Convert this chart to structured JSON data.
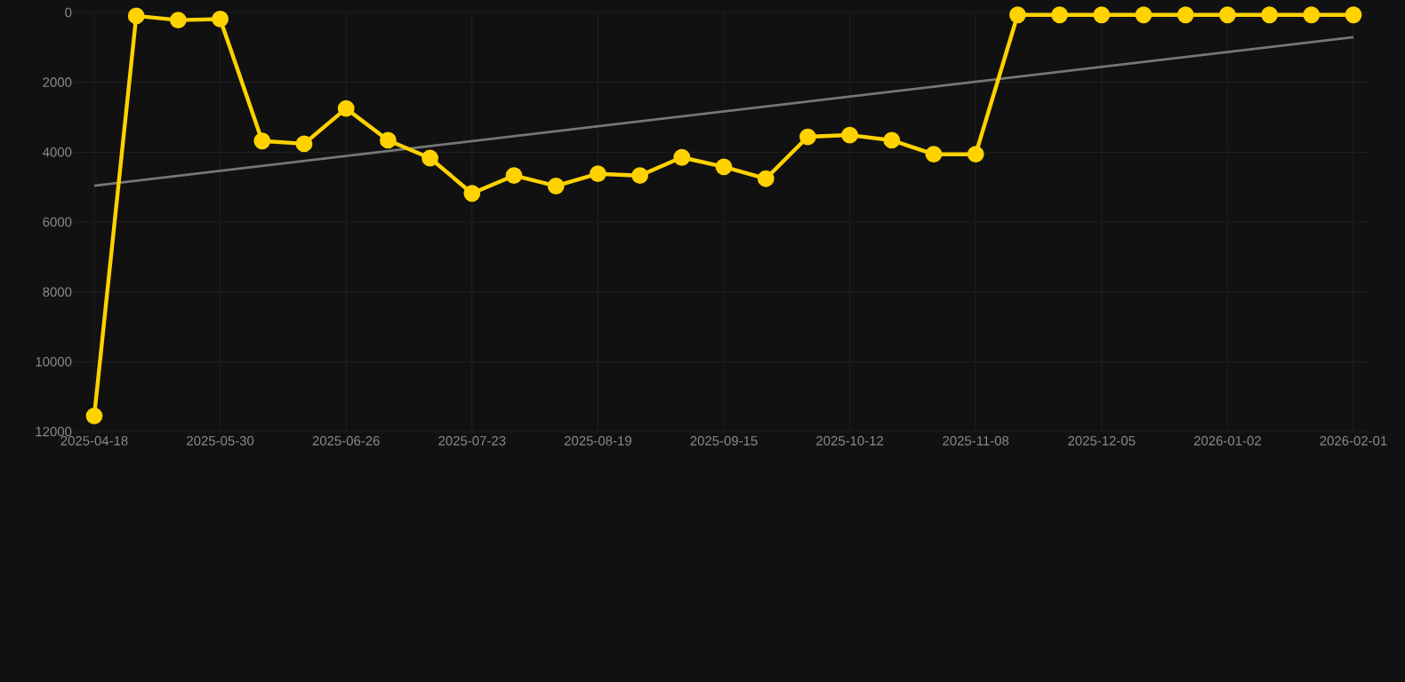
{
  "chart_data": {
    "type": "line",
    "categories": [
      "2025-04-18",
      null,
      null,
      "2025-05-30",
      null,
      null,
      "2025-06-26",
      null,
      null,
      "2025-07-23",
      null,
      null,
      "2025-08-19",
      null,
      null,
      "2025-09-15",
      null,
      null,
      "2025-10-12",
      null,
      null,
      "2025-11-08",
      null,
      null,
      "2025-12-05",
      null,
      null,
      "2026-01-02",
      null,
      null,
      "2026-02-01"
    ],
    "series": [
      {
        "color": "#ffd200",
        "marker": "circle",
        "values": [
          11550,
          100,
          220,
          190,
          3680,
          3760,
          2750,
          3660,
          4170,
          5180,
          4670,
          4970,
          4620,
          4670,
          4150,
          4420,
          4760,
          3560,
          3510,
          3660,
          4060,
          4060,
          70,
          70,
          70,
          70,
          70,
          70,
          70,
          70,
          70
        ]
      },
      {
        "color": "#777777",
        "marker": "none",
        "values": [
          4960,
          null,
          null,
          null,
          null,
          null,
          null,
          null,
          null,
          null,
          null,
          null,
          null,
          null,
          null,
          null,
          null,
          null,
          null,
          null,
          null,
          null,
          null,
          null,
          null,
          null,
          null,
          null,
          null,
          null,
          710
        ]
      }
    ],
    "ylim": [
      12000,
      0
    ],
    "yticks": [
      0,
      2000,
      4000,
      6000,
      8000,
      10000,
      12000
    ],
    "grid": true
  }
}
